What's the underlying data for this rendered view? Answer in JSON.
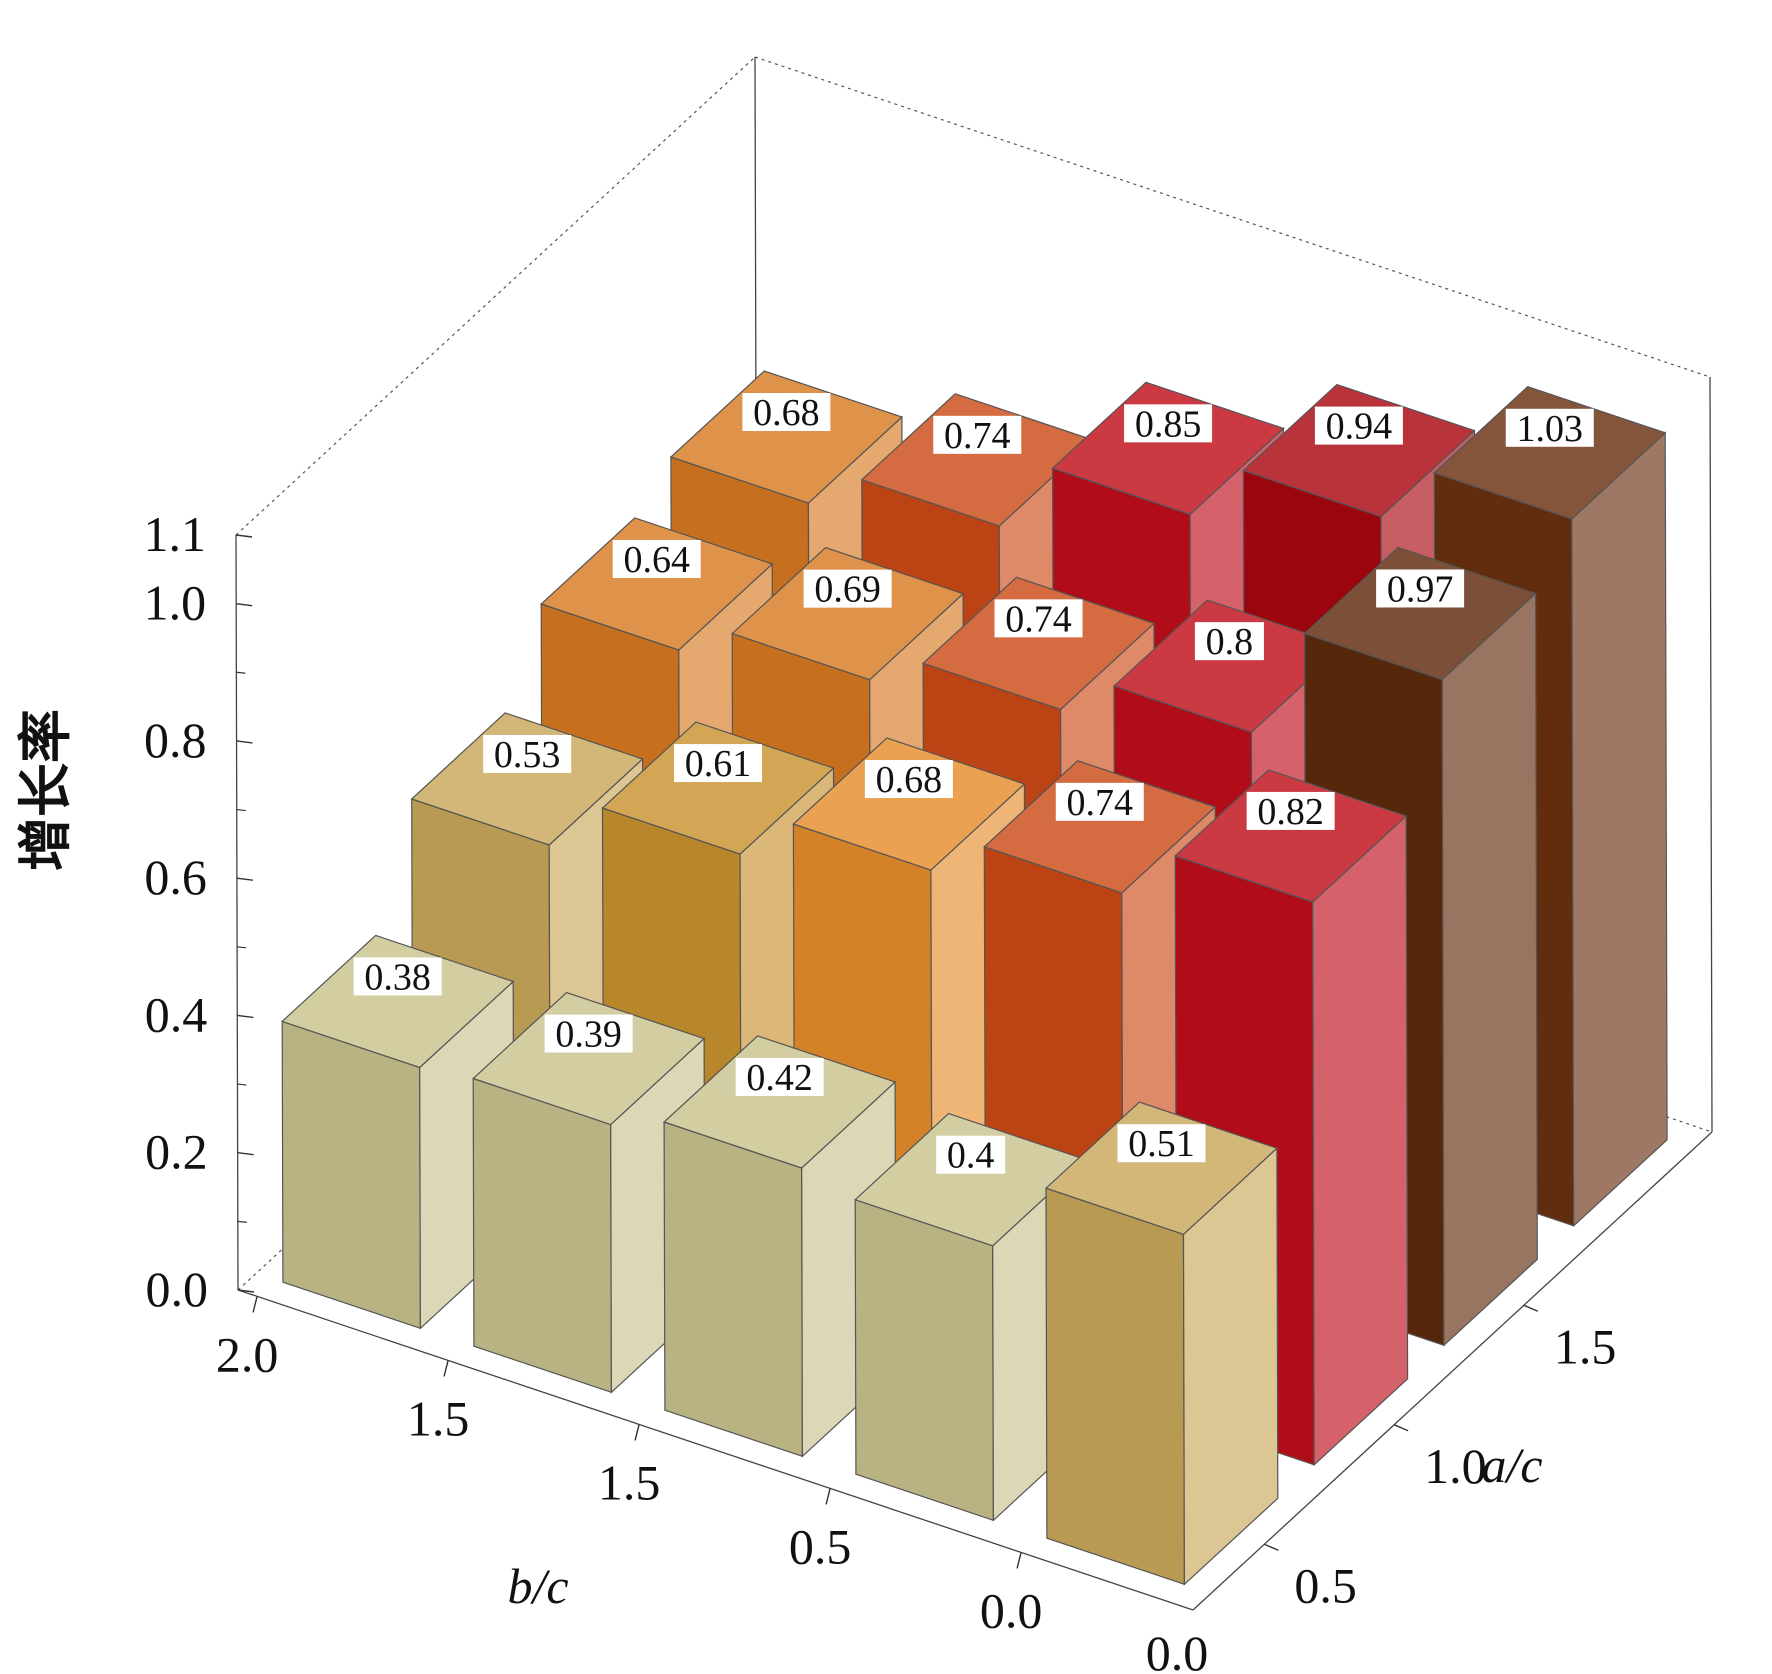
{
  "chart_data": {
    "type": "bar3d",
    "ylabel": "增长率",
    "xlabel": "b/c",
    "zlabel": "a/c",
    "y_ticks": [
      "0.0",
      "0.2",
      "0.4",
      "0.6",
      "0.8",
      "1.0",
      "1.1"
    ],
    "b_ticks": [
      "2.0",
      "1.5",
      "1.5",
      "0.5",
      "0.0"
    ],
    "a_ticks": [
      "0.5",
      "1.0",
      "1.5"
    ],
    "ylim": [
      0,
      1.1
    ],
    "grid": false,
    "rows": [
      {
        "a": "0.0",
        "values": [
          0.38,
          0.39,
          0.42,
          0.4,
          0.51
        ]
      },
      {
        "a": "0.5",
        "values": [
          0.53,
          0.61,
          0.68,
          0.74,
          0.82
        ]
      },
      {
        "a": "1.0",
        "values": [
          0.64,
          0.69,
          0.74,
          0.8,
          0.97
        ]
      },
      {
        "a": "1.5",
        "values": [
          0.68,
          0.74,
          0.85,
          0.94,
          1.03
        ]
      }
    ],
    "colors": [
      [
        "#c9c28e",
        "#c9c28e",
        "#c9c28e",
        "#c9c28e",
        "#c9a75a"
      ],
      [
        "#c9a75a",
        "#c8922f",
        "#e58d2c",
        "#cc4a16",
        "#bf0e1a"
      ],
      [
        "#d77a22",
        "#d77a22",
        "#cc4a16",
        "#bf0e1a",
        "#5f2a0c"
      ],
      [
        "#d77a22",
        "#cc4a16",
        "#bf0e1a",
        "#a8070f",
        "#6a3010"
      ]
    ]
  }
}
